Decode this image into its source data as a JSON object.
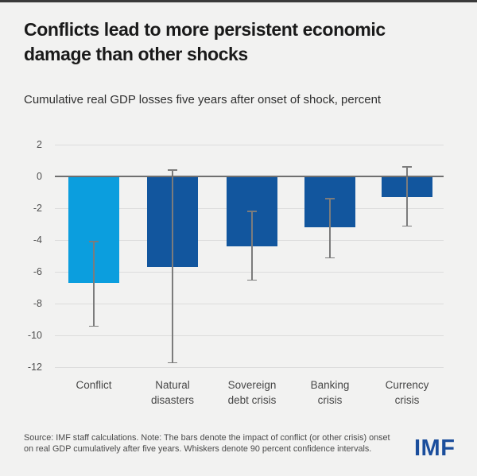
{
  "page": {
    "background_color": "#f2f2f1",
    "top_strip_color": "#3a3a3a",
    "title_line1": "Conflicts lead to more persistent economic",
    "title_line2": "damage than other shocks",
    "subtitle": "Cumulative real GDP losses five years after onset of shock, percent"
  },
  "chart_data": {
    "type": "bar",
    "orientation": "vertical",
    "title": "Conflicts lead to more persistent economic damage than other shocks",
    "subtitle": "Cumulative real GDP losses five years after onset of shock, percent",
    "categories": [
      "Conflict",
      "Natural disasters",
      "Sovereign debt crisis",
      "Banking crisis",
      "Currency crisis"
    ],
    "values": [
      -6.7,
      -5.7,
      -4.4,
      -3.2,
      -1.3
    ],
    "whiskers_high": [
      -4.1,
      0.4,
      -2.2,
      -1.4,
      0.6
    ],
    "whiskers_low": [
      -9.4,
      -11.7,
      -6.5,
      -5.1,
      -3.1
    ],
    "whisker_meaning": "90 percent confidence intervals",
    "y_ticks": [
      2,
      0,
      -2,
      -4,
      -6,
      -8,
      -10,
      -12
    ],
    "ylim": [
      -12.6,
      2.85
    ],
    "xlabel": "",
    "ylabel": "",
    "grid": true,
    "legend": "none",
    "bar_colors": [
      "#0b9ede",
      "#12569e",
      "#12569e",
      "#12569e",
      "#12569e"
    ],
    "gridline_color": "#dcdcdc",
    "zero_line_color": "#6f6f6f",
    "whisker_color": "#7c7c7c"
  },
  "footer": {
    "note_line1": "Source: IMF staff calculations. Note: The bars denote the impact of conflict (or other crisis) onset",
    "note_line2": "on real GDP cumulatively after five years. Whiskers denote 90 percent confidence intervals.",
    "logo_text": "IMF",
    "logo_color": "#1b4e9c"
  }
}
